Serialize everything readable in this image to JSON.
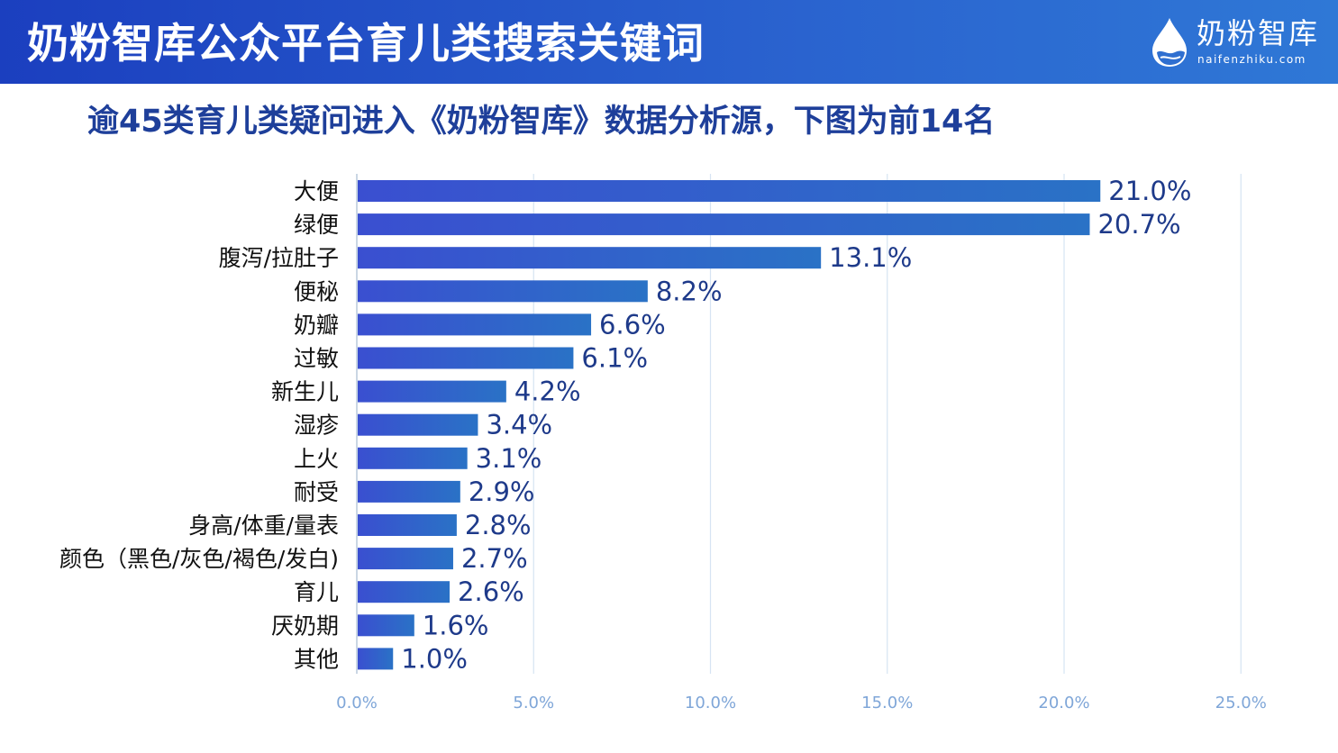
{
  "header": {
    "title": "奶粉智库公众平台育儿类搜索关键词",
    "logo_name": "奶粉智库",
    "logo_url": "naifenzhiku.com"
  },
  "subtitle": "逾45类育儿类疑问进入《奶粉智库》数据分析源，下图为前14名",
  "colors": {
    "header_start": "#1b3fbf",
    "header_end": "#2f78d6",
    "bar_start": "#3a4fd0",
    "bar_end": "#2a72c6",
    "subtitle": "#1e3f9a",
    "value_label": "#1e3a8a",
    "axis_tick": "#7fa6d8",
    "grid": "#d6e4f3"
  },
  "chart_data": {
    "type": "bar",
    "orientation": "horizontal",
    "categories": [
      "大便",
      "绿便",
      "腹泻/拉肚子",
      "便秘",
      "奶瓣",
      "过敏",
      "新生儿",
      "湿疹",
      "上火",
      "耐受",
      "身高/体重/量表",
      "颜色（黑色/灰色/褐色/发白)",
      "育儿",
      "厌奶期",
      "其他"
    ],
    "values": [
      21.0,
      20.7,
      13.1,
      8.2,
      6.6,
      6.1,
      4.2,
      3.4,
      3.1,
      2.9,
      2.8,
      2.7,
      2.6,
      1.6,
      1.0
    ],
    "value_labels": [
      "21.0%",
      "20.7%",
      "13.1%",
      "8.2%",
      "6.6%",
      "6.1%",
      "4.2%",
      "3.4%",
      "3.1%",
      "2.9%",
      "2.8%",
      "2.7%",
      "2.6%",
      "1.6%",
      "1.0%"
    ],
    "xlim": [
      0,
      25
    ],
    "xticks": [
      0,
      5,
      10,
      15,
      20,
      25
    ],
    "xtick_labels": [
      "0.0%",
      "5.0%",
      "10.0%",
      "15.0%",
      "20.0%",
      "25.0%"
    ],
    "grid": true,
    "title": "",
    "xlabel": "",
    "ylabel": ""
  }
}
